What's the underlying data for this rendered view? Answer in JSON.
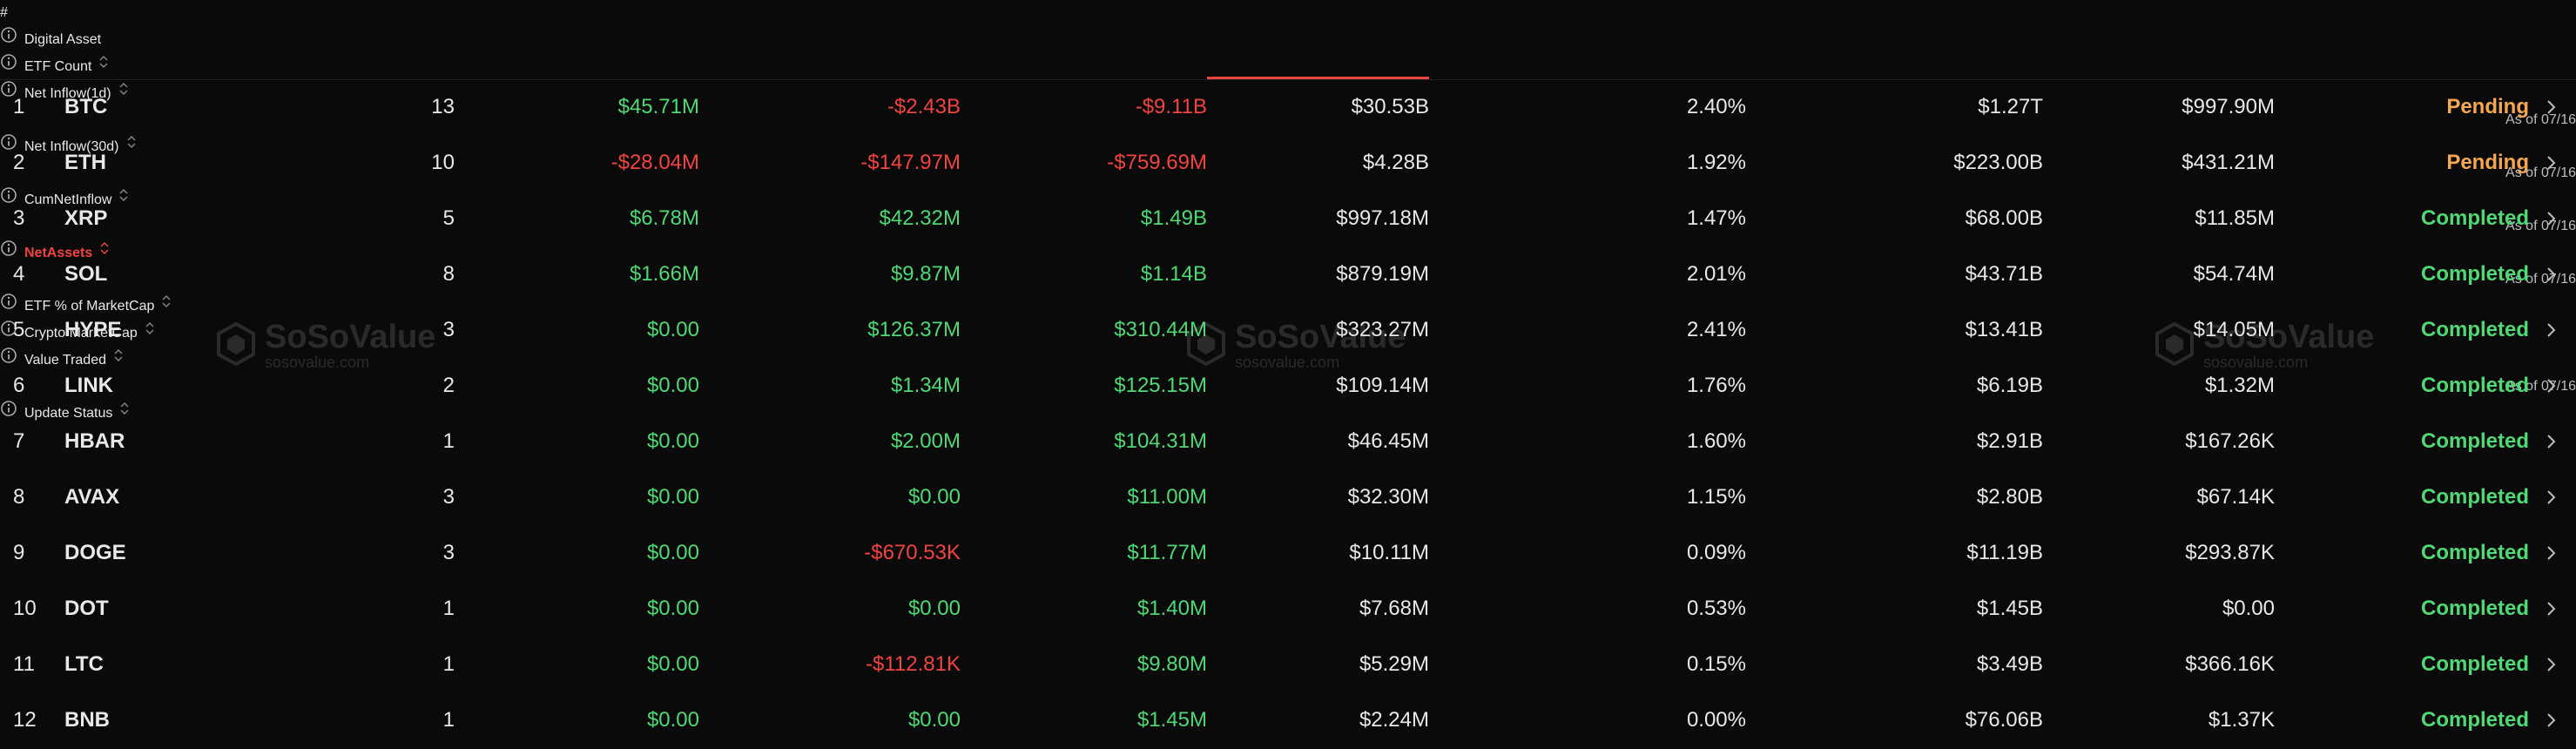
{
  "table": {
    "positive_color": "#4fd873",
    "negative_color": "#f2443f",
    "active_color": "#f2443f",
    "columns": [
      {
        "title": "#"
      },
      {
        "title": "Digital Asset"
      },
      {
        "title": "ETF Count"
      },
      {
        "title": "Net Inflow(1d)",
        "subtitle": "As of 07/16"
      },
      {
        "title": "Net Inflow(30d)",
        "subtitle": "As of 07/16"
      },
      {
        "title": "CumNetInflow",
        "subtitle": "As of 07/16"
      },
      {
        "title": "NetAssets",
        "subtitle": "As of 07/16",
        "active": true
      },
      {
        "title": "ETF % of MarketCap"
      },
      {
        "title": "Crypto MarketCap"
      },
      {
        "title": "Value Traded",
        "subtitle": "As of 07/16"
      },
      {
        "title": "Update Status"
      }
    ],
    "rows": [
      [
        "1",
        "BTC",
        "13",
        "$45.71M",
        "-$2.43B",
        "-$9.11B",
        "$30.53B",
        "2.40%",
        "$1.27T",
        "$997.90M",
        {
          "text": "Pending",
          "color": "#f5a650"
        }
      ],
      [
        "2",
        "ETH",
        "10",
        "-$28.04M",
        "-$147.97M",
        "-$759.69M",
        "$4.28B",
        "1.92%",
        "$223.00B",
        "$431.21M",
        {
          "text": "Pending",
          "color": "#f5a650"
        }
      ],
      [
        "3",
        "XRP",
        "5",
        "$6.78M",
        "$42.32M",
        "$1.49B",
        "$997.18M",
        "1.47%",
        "$68.00B",
        "$11.85M",
        {
          "text": "Completed",
          "color": "#4fd873"
        }
      ],
      [
        "4",
        "SOL",
        "8",
        "$1.66M",
        "$9.87M",
        "$1.14B",
        "$879.19M",
        "2.01%",
        "$43.71B",
        "$54.74M",
        {
          "text": "Completed",
          "color": "#4fd873"
        }
      ],
      [
        "5",
        "HYPE",
        "3",
        "$0.00",
        "$126.37M",
        "$310.44M",
        "$323.27M",
        "2.41%",
        "$13.41B",
        "$14.05M",
        {
          "text": "Completed",
          "color": "#4fd873"
        }
      ],
      [
        "6",
        "LINK",
        "2",
        "$0.00",
        "$1.34M",
        "$125.15M",
        "$109.14M",
        "1.76%",
        "$6.19B",
        "$1.32M",
        {
          "text": "Completed",
          "color": "#4fd873"
        }
      ],
      [
        "7",
        "HBAR",
        "1",
        "$0.00",
        "$2.00M",
        "$104.31M",
        "$46.45M",
        "1.60%",
        "$2.91B",
        "$167.26K",
        {
          "text": "Completed",
          "color": "#4fd873"
        }
      ],
      [
        "8",
        "AVAX",
        "3",
        "$0.00",
        "$0.00",
        "$11.00M",
        "$32.30M",
        "1.15%",
        "$2.80B",
        "$67.14K",
        {
          "text": "Completed",
          "color": "#4fd873"
        }
      ],
      [
        "9",
        "DOGE",
        "3",
        "$0.00",
        "-$670.53K",
        "$11.77M",
        "$10.11M",
        "0.09%",
        "$11.19B",
        "$293.87K",
        {
          "text": "Completed",
          "color": "#4fd873"
        }
      ],
      [
        "10",
        "DOT",
        "1",
        "$0.00",
        "$0.00",
        "$1.40M",
        "$7.68M",
        "0.53%",
        "$1.45B",
        "$0.00",
        {
          "text": "Completed",
          "color": "#4fd873"
        }
      ],
      [
        "11",
        "LTC",
        "1",
        "$0.00",
        "-$112.81K",
        "$9.80M",
        "$5.29M",
        "0.15%",
        "$3.49B",
        "$366.16K",
        {
          "text": "Completed",
          "color": "#4fd873"
        }
      ],
      [
        "12",
        "BNB",
        "1",
        "$0.00",
        "$0.00",
        "$1.45M",
        "$2.24M",
        "0.00%",
        "$76.06B",
        "$1.37K",
        {
          "text": "Completed",
          "color": "#4fd873"
        }
      ]
    ]
  },
  "watermarks": [
    {
      "brand": "SoSoValue",
      "site": "sosovalue.com"
    },
    {
      "brand": "SoSoValue",
      "site": "sosovalue.com"
    },
    {
      "brand": "SoSoValue",
      "site": "sosovalue.com"
    }
  ]
}
